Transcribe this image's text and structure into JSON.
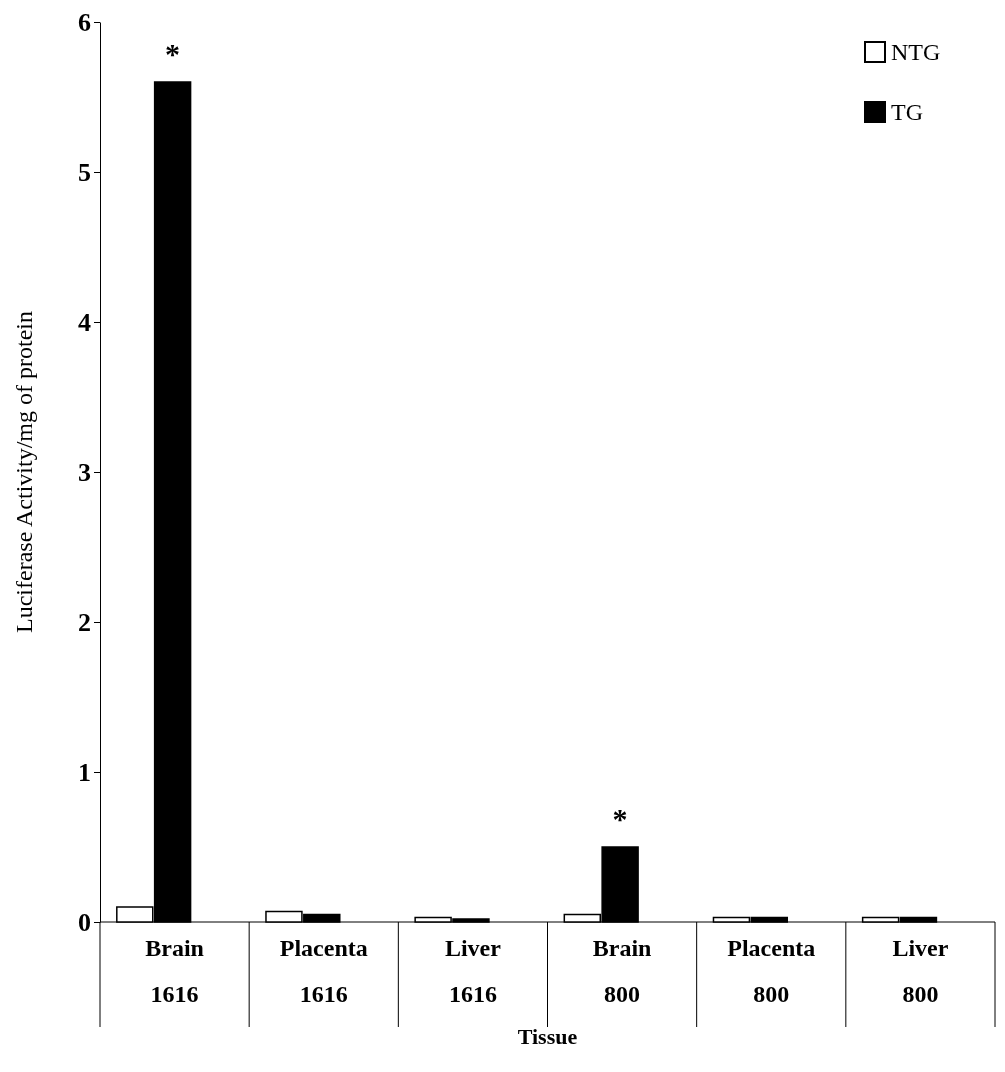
{
  "chart_data": {
    "type": "bar",
    "xlabel": "Tissue",
    "ylabel": "Luciferase Activity/mg of protein",
    "categories": [
      "Brain\n1616",
      "Placenta\n1616",
      "Liver\n1616",
      "Brain\n800",
      "Placenta\n800",
      "Liver\n800"
    ],
    "series": [
      {
        "name": "NTG",
        "color": "#ffffff",
        "values": [
          0.1,
          0.07,
          0.03,
          0.05,
          0.03,
          0.03
        ]
      },
      {
        "name": "TG",
        "color": "#000000",
        "values": [
          5.6,
          0.05,
          0.02,
          0.5,
          0.03,
          0.03
        ]
      }
    ],
    "ylim": [
      0,
      6
    ],
    "yticks": [
      0,
      1,
      2,
      3,
      4,
      5,
      6
    ],
    "grid": false,
    "legend": "top right",
    "annotations": [
      {
        "text": "*",
        "x": "Brain\n1616",
        "y": 5.6
      },
      {
        "text": "*",
        "x": "Brain\n800",
        "y": 0.5
      }
    ]
  }
}
